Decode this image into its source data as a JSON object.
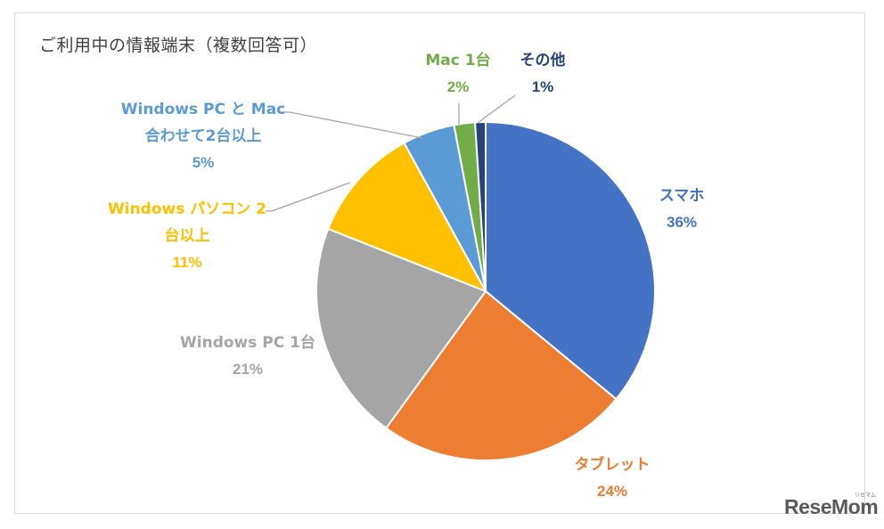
{
  "chart_data": {
    "type": "pie",
    "title": "ご利用中の情報端末（複数回答可）",
    "slices": [
      {
        "lines": [
          "スマホ"
        ],
        "pct_label": "36%",
        "value": 36,
        "color": "#4472c4"
      },
      {
        "lines": [
          "タブレット"
        ],
        "pct_label": "24%",
        "value": 24,
        "color": "#ed7d31"
      },
      {
        "lines": [
          "Windows PC 1台"
        ],
        "pct_label": "21%",
        "value": 21,
        "color": "#a5a5a5"
      },
      {
        "lines": [
          "Windows パソコン 2",
          "台以上"
        ],
        "pct_label": "11%",
        "value": 11,
        "color": "#ffc000"
      },
      {
        "lines": [
          "Windows PC と Mac",
          "合わせて2台以上"
        ],
        "pct_label": "5%",
        "value": 5,
        "color": "#5b9bd5"
      },
      {
        "lines": [
          "Mac 1台"
        ],
        "pct_label": "2%",
        "value": 2,
        "color": "#70ad47"
      },
      {
        "lines": [
          "その他"
        ],
        "pct_label": "1%",
        "value": 1,
        "color": "#264478"
      }
    ]
  },
  "watermark": {
    "brand": "ReseMom",
    "sub": "リセマム"
  }
}
